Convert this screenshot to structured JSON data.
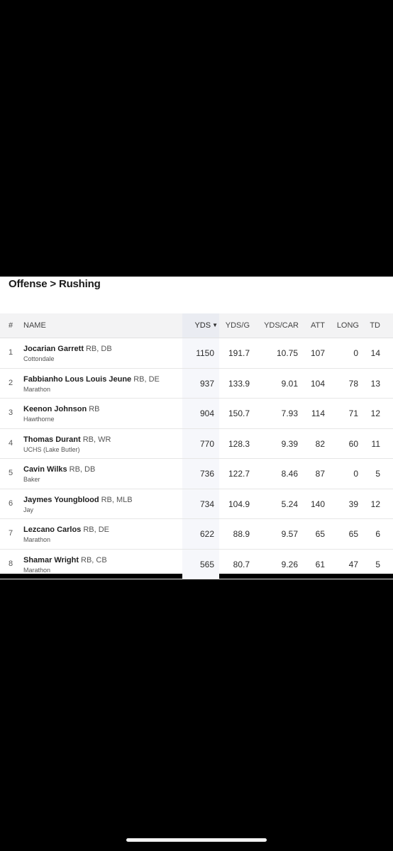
{
  "breadcrumb": "Offense > Rushing",
  "columns": {
    "rank": "#",
    "name": "NAME",
    "yds": "YDS",
    "yds_sort_arrow": "▼",
    "ydsg": "YDS/G",
    "ydscar": "YDS/CAR",
    "att": "ATT",
    "long": "LONG",
    "td": "TD"
  },
  "rows": [
    {
      "rank": "1",
      "name": "Jocarian Garrett",
      "pos": "RB, DB",
      "school": "Cottondale",
      "yds": "1150",
      "ydsg": "191.7",
      "ydscar": "10.75",
      "att": "107",
      "long": "0",
      "td": "14"
    },
    {
      "rank": "2",
      "name": "Fabbianho Lous Louis Jeune",
      "pos": "RB, DE",
      "school": "Marathon",
      "yds": "937",
      "ydsg": "133.9",
      "ydscar": "9.01",
      "att": "104",
      "long": "78",
      "td": "13"
    },
    {
      "rank": "3",
      "name": "Keenon Johnson",
      "pos": "RB",
      "school": "Hawthorne",
      "yds": "904",
      "ydsg": "150.7",
      "ydscar": "7.93",
      "att": "114",
      "long": "71",
      "td": "12"
    },
    {
      "rank": "4",
      "name": "Thomas Durant",
      "pos": "RB, WR",
      "school": "UCHS (Lake Butler)",
      "yds": "770",
      "ydsg": "128.3",
      "ydscar": "9.39",
      "att": "82",
      "long": "60",
      "td": "11"
    },
    {
      "rank": "5",
      "name": "Cavin Wilks",
      "pos": "RB, DB",
      "school": "Baker",
      "yds": "736",
      "ydsg": "122.7",
      "ydscar": "8.46",
      "att": "87",
      "long": "0",
      "td": "5"
    },
    {
      "rank": "6",
      "name": "Jaymes Youngblood",
      "pos": "RB, MLB",
      "school": "Jay",
      "yds": "734",
      "ydsg": "104.9",
      "ydscar": "5.24",
      "att": "140",
      "long": "39",
      "td": "12"
    },
    {
      "rank": "7",
      "name": "Lezcano Carlos",
      "pos": "RB, DE",
      "school": "Marathon",
      "yds": "622",
      "ydsg": "88.9",
      "ydscar": "9.57",
      "att": "65",
      "long": "65",
      "td": "6"
    },
    {
      "rank": "8",
      "name": "Shamar Wright",
      "pos": "RB, CB",
      "school": "Marathon",
      "yds": "565",
      "ydsg": "80.7",
      "ydscar": "9.26",
      "att": "61",
      "long": "47",
      "td": "5"
    }
  ]
}
